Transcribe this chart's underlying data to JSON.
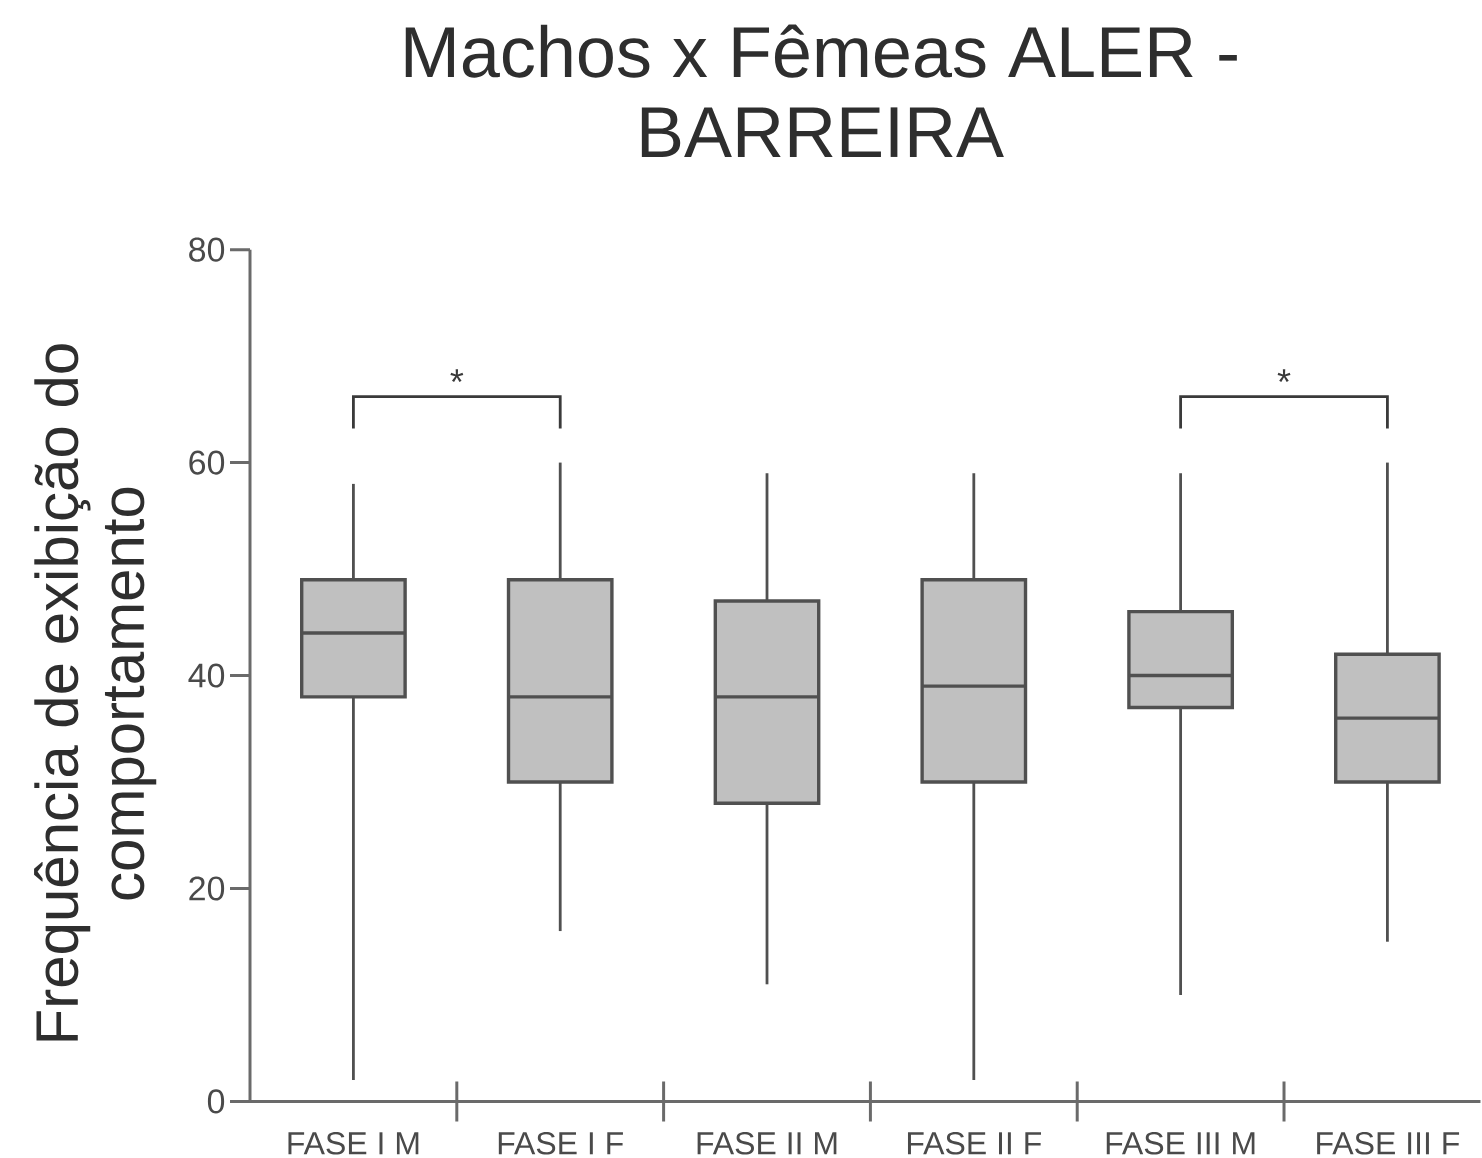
{
  "chart_data": {
    "type": "box",
    "title": "Machos x Fêmeas ALER - BARREIRA",
    "ylabel": "Frequência de exibição do comportamento",
    "categories": [
      "FASE I M",
      "FASE I F",
      "FASE II M",
      "FASE II F",
      "FASE III M",
      "FASE III F"
    ],
    "boxes": [
      {
        "low": 2,
        "q1": 38,
        "median": 44,
        "q3": 49,
        "high": 58
      },
      {
        "low": 16,
        "q1": 30,
        "median": 38,
        "q3": 49,
        "high": 60
      },
      {
        "low": 11,
        "q1": 28,
        "median": 38,
        "q3": 47,
        "high": 59
      },
      {
        "low": 2,
        "q1": 30,
        "median": 39,
        "q3": 49,
        "high": 59
      },
      {
        "low": 10,
        "q1": 37,
        "median": 40,
        "q3": 46,
        "high": 59
      },
      {
        "low": 15,
        "q1": 30,
        "median": 36,
        "q3": 42,
        "high": 60
      }
    ],
    "color": "#c0c0c0",
    "ylim": [
      0,
      80
    ],
    "yticks": [
      0,
      20,
      40,
      60,
      80
    ],
    "annotations": [
      "*",
      "*"
    ]
  }
}
